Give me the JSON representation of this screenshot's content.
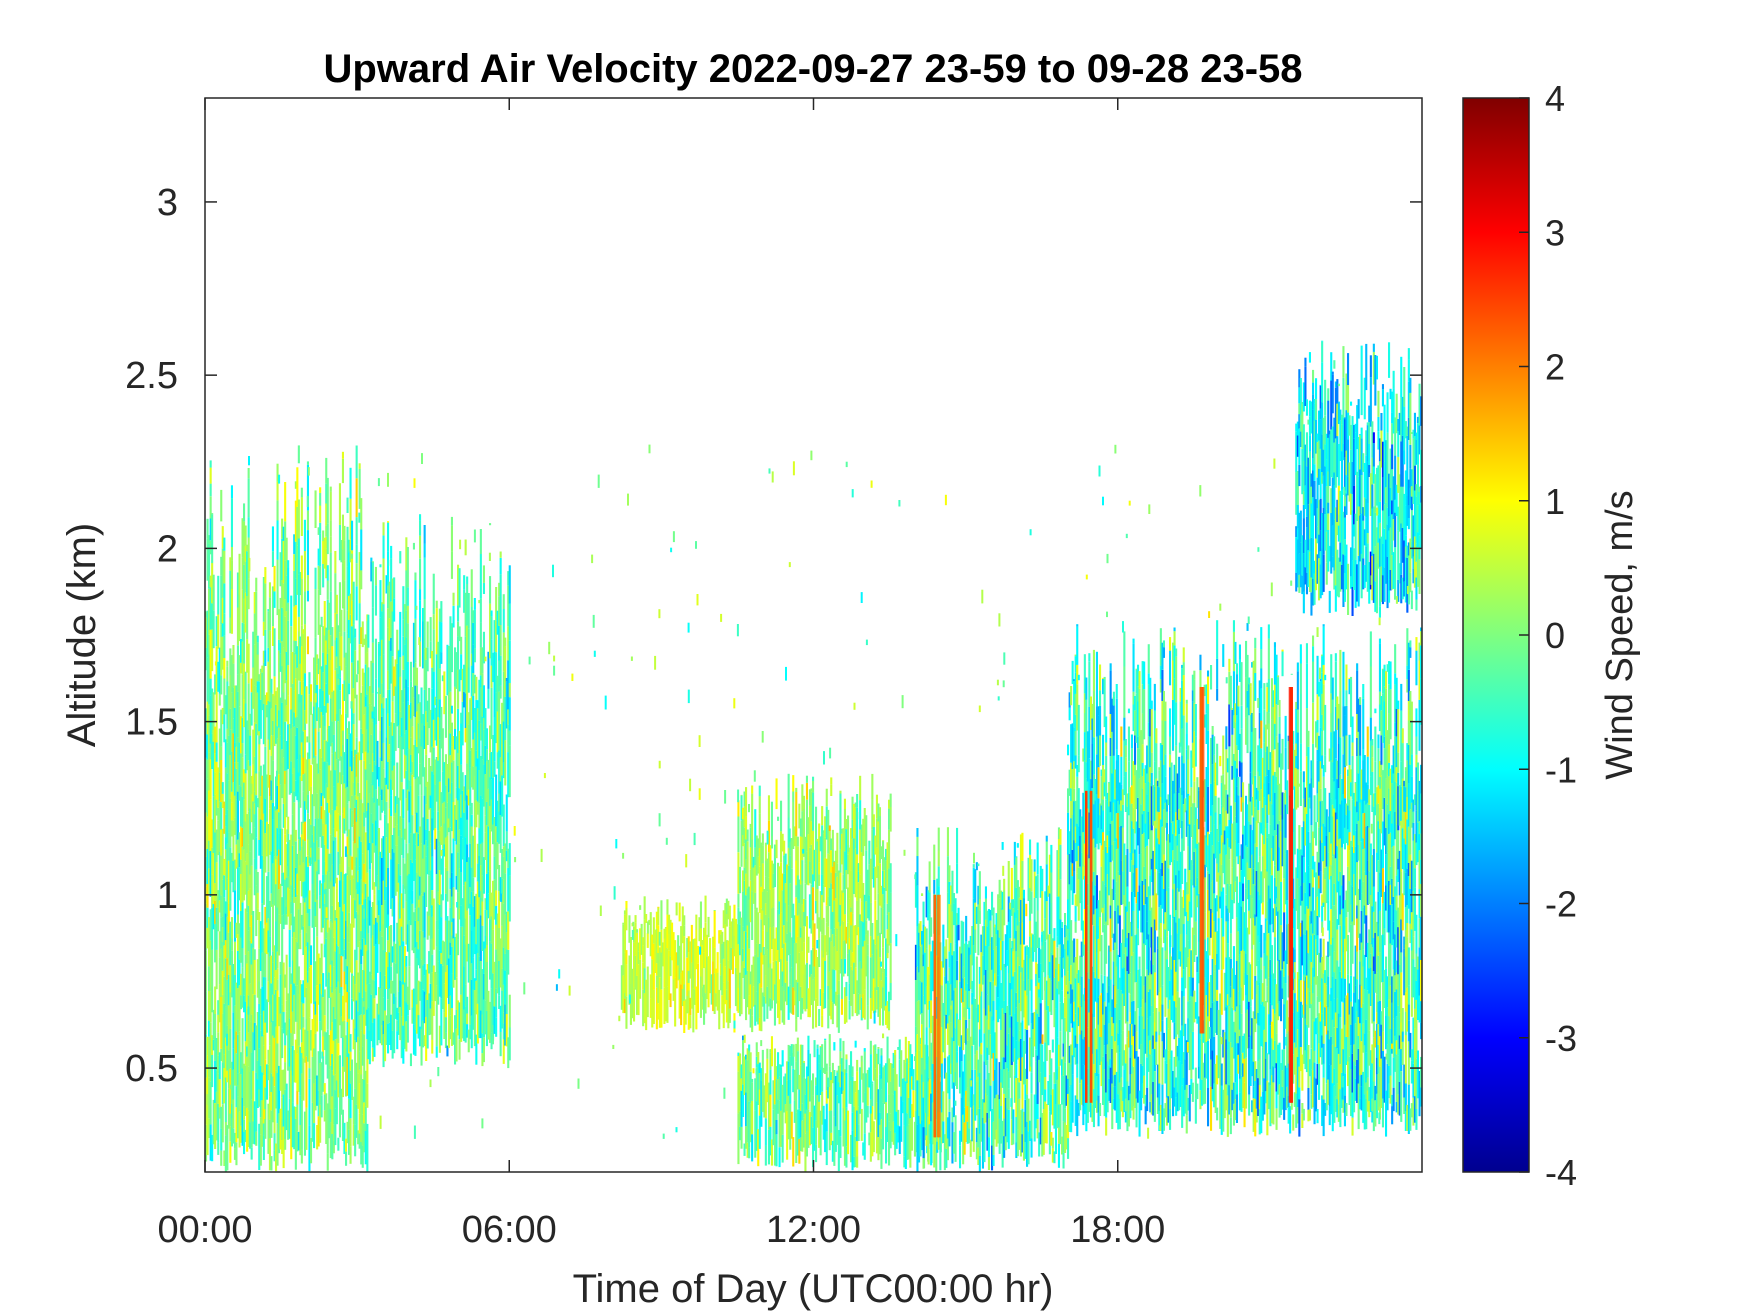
{
  "chart_data": {
    "type": "heatmap",
    "title": "Upward Air Velocity 2022-09-27 23-59 to 09-28 23-58",
    "xlabel": "Time of Day (UTC00:00 hr)",
    "ylabel": "Altitude (km)",
    "xlim": [
      0,
      24
    ],
    "ylim": [
      0.2,
      3.3
    ],
    "x_ticks": [
      0,
      6,
      12,
      18
    ],
    "x_tick_labels": [
      "00:00",
      "06:00",
      "12:00",
      "18:00"
    ],
    "y_ticks": [
      0.5,
      1,
      1.5,
      2,
      2.5,
      3
    ],
    "y_tick_labels": [
      "0.5",
      "1",
      "1.5",
      "2",
      "2.5",
      "3"
    ],
    "colorbar": {
      "label": "Wind Speed, m/s",
      "range": [
        -4,
        4
      ],
      "ticks": [
        -4,
        -3,
        -2,
        -1,
        0,
        1,
        2,
        3,
        4
      ],
      "tick_labels": [
        "-4",
        "-3",
        "-2",
        "-1",
        "0",
        "1",
        "2",
        "3",
        "4"
      ],
      "colormap": "jet"
    },
    "regions": [
      {
        "x": [
          0.0,
          3.2
        ],
        "y_bottom": 0.2,
        "y_top": 2.3,
        "mean": 0.0,
        "spread": 0.8
      },
      {
        "x": [
          3.2,
          6.0
        ],
        "y_bottom": 0.5,
        "y_top": 2.1,
        "mean": -0.3,
        "spread": 0.8
      },
      {
        "x": [
          8.2,
          10.5
        ],
        "y_bottom": 0.6,
        "y_top": 1.0,
        "mean": 0.6,
        "spread": 0.5
      },
      {
        "x": [
          10.5,
          13.5
        ],
        "y_bottom": 0.6,
        "y_top": 1.35,
        "mean": 0.2,
        "spread": 0.7
      },
      {
        "x": [
          10.5,
          14.5
        ],
        "y_bottom": 0.2,
        "y_top": 0.6,
        "mean": -0.2,
        "spread": 0.8
      },
      {
        "x": [
          14.0,
          17.0
        ],
        "y_bottom": 0.2,
        "y_top": 1.2,
        "mean": -0.4,
        "spread": 1.0
      },
      {
        "x": [
          17.0,
          24.0
        ],
        "y_bottom": 0.3,
        "y_top": 1.8,
        "mean": -0.5,
        "spread": 1.1
      },
      {
        "x": [
          21.5,
          24.0
        ],
        "y_bottom": 1.8,
        "y_top": 2.6,
        "mean": -1.0,
        "spread": 1.0
      }
    ],
    "strong_updrafts": [
      {
        "x": 14.4,
        "y_range": [
          0.3,
          1.0
        ],
        "value": 2.5
      },
      {
        "x": 17.4,
        "y_range": [
          0.4,
          1.3
        ],
        "value": 3.0
      },
      {
        "x": 19.6,
        "y_range": [
          0.6,
          1.6
        ],
        "value": 2.5
      },
      {
        "x": 21.4,
        "y_range": [
          0.4,
          1.6
        ],
        "value": 3.0
      }
    ]
  }
}
